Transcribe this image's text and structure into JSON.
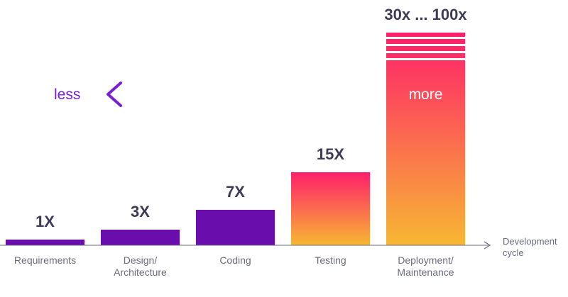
{
  "chart_data": {
    "type": "bar",
    "categories": [
      "Requirements",
      "Design/\nArchitecture",
      "Coding",
      "Testing",
      "Deployment/\nMaintenance"
    ],
    "values": [
      1,
      3,
      7,
      15,
      100
    ],
    "value_labels": [
      "1X",
      "3X",
      "7X",
      "15X",
      "30x ... 100x"
    ],
    "xlabel": "Development\ncycle",
    "arrow": {
      "left_label": "less",
      "right_label": "more"
    },
    "colors": {
      "purple": "#6a0dad",
      "gradient_top": "#ff1f6b",
      "gradient_bottom": "#f7b733",
      "arrow_start": "#7a1fd6",
      "arrow_end": "#e0268f",
      "axis": "#6b6b80",
      "value_label": "#3d3b55",
      "category_label": "#6b6b80"
    }
  }
}
